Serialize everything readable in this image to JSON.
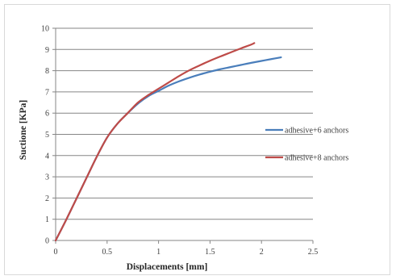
{
  "chart_data": {
    "type": "line",
    "title": "",
    "xlabel": "Displacements [mm]",
    "ylabel": "Suctione [KPa]",
    "xlim": [
      0,
      2.5
    ],
    "ylim": [
      0,
      10
    ],
    "x_ticks": [
      "0",
      "0.5",
      "1",
      "1.5",
      "2",
      "2.5"
    ],
    "y_ticks": [
      "0",
      "1",
      "2",
      "3",
      "4",
      "5",
      "6",
      "7",
      "8",
      "9",
      "10"
    ],
    "grid": "horizontal",
    "legend_position": "right",
    "series": [
      {
        "name": "adhesive+6 anchors",
        "color": "#4a7ebb",
        "points": [
          [
            0,
            0
          ],
          [
            0.1,
            0.95
          ],
          [
            0.2,
            1.95
          ],
          [
            0.3,
            2.95
          ],
          [
            0.4,
            3.95
          ],
          [
            0.5,
            4.85
          ],
          [
            0.6,
            5.5
          ],
          [
            0.7,
            6.0
          ],
          [
            0.8,
            6.45
          ],
          [
            0.9,
            6.8
          ],
          [
            1.0,
            7.05
          ],
          [
            1.1,
            7.3
          ],
          [
            1.2,
            7.5
          ],
          [
            1.3,
            7.67
          ],
          [
            1.4,
            7.82
          ],
          [
            1.5,
            7.95
          ],
          [
            1.6,
            8.07
          ],
          [
            1.7,
            8.17
          ],
          [
            1.8,
            8.27
          ],
          [
            1.9,
            8.37
          ],
          [
            2.0,
            8.46
          ],
          [
            2.1,
            8.55
          ],
          [
            2.19,
            8.63
          ]
        ]
      },
      {
        "name": "adhesive+8 anchors",
        "color": "#be4b48",
        "points": [
          [
            0,
            0
          ],
          [
            0.1,
            0.95
          ],
          [
            0.2,
            1.95
          ],
          [
            0.3,
            2.95
          ],
          [
            0.4,
            3.95
          ],
          [
            0.5,
            4.85
          ],
          [
            0.6,
            5.5
          ],
          [
            0.7,
            6.0
          ],
          [
            0.8,
            6.5
          ],
          [
            0.9,
            6.85
          ],
          [
            1.0,
            7.15
          ],
          [
            1.1,
            7.45
          ],
          [
            1.2,
            7.75
          ],
          [
            1.3,
            8.02
          ],
          [
            1.4,
            8.25
          ],
          [
            1.5,
            8.47
          ],
          [
            1.6,
            8.67
          ],
          [
            1.7,
            8.86
          ],
          [
            1.8,
            9.05
          ],
          [
            1.9,
            9.23
          ],
          [
            1.93,
            9.3
          ]
        ]
      }
    ]
  }
}
